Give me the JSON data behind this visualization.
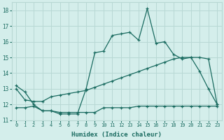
{
  "title": "",
  "xlabel": "Humidex (Indice chaleur)",
  "ylabel": "",
  "bg_color": "#d4eeeb",
  "grid_color": "#b8d8d4",
  "line_color": "#1a6b60",
  "xlim": [
    -0.5,
    23.5
  ],
  "ylim": [
    11,
    18.5
  ],
  "xticks": [
    0,
    1,
    2,
    3,
    4,
    5,
    6,
    7,
    8,
    9,
    10,
    11,
    12,
    13,
    14,
    15,
    16,
    17,
    18,
    19,
    20,
    21,
    22,
    23
  ],
  "yticks": [
    11,
    12,
    13,
    14,
    15,
    16,
    17,
    18
  ],
  "series1_x": [
    0,
    1,
    2,
    3,
    4,
    5,
    6,
    7,
    8,
    9,
    10,
    11,
    12,
    13,
    14,
    15,
    16,
    17,
    18,
    19,
    20,
    21,
    22,
    23
  ],
  "series1_y": [
    13.2,
    12.8,
    12.0,
    11.6,
    11.6,
    11.4,
    11.4,
    11.4,
    13.0,
    15.3,
    15.4,
    16.4,
    16.5,
    16.6,
    16.1,
    18.1,
    15.9,
    16.0,
    15.2,
    14.9,
    15.0,
    14.1,
    13.0,
    12.0
  ],
  "series2_x": [
    0,
    1,
    2,
    3,
    4,
    5,
    6,
    7,
    8,
    9,
    10,
    11,
    12,
    13,
    14,
    15,
    16,
    17,
    18,
    19,
    20,
    21,
    22,
    23
  ],
  "series2_y": [
    13.0,
    12.3,
    12.2,
    12.2,
    12.5,
    12.6,
    12.7,
    12.8,
    12.9,
    13.1,
    13.3,
    13.5,
    13.7,
    13.9,
    14.1,
    14.3,
    14.5,
    14.7,
    14.9,
    15.0,
    15.0,
    15.0,
    14.9,
    12.0
  ],
  "series3_x": [
    0,
    1,
    2,
    3,
    4,
    5,
    6,
    7,
    8,
    9,
    10,
    11,
    12,
    13,
    14,
    15,
    16,
    17,
    18,
    19,
    20,
    21,
    22,
    23
  ],
  "series3_y": [
    11.8,
    11.8,
    11.9,
    11.6,
    11.6,
    11.5,
    11.5,
    11.5,
    11.5,
    11.5,
    11.8,
    11.8,
    11.8,
    11.8,
    11.9,
    11.9,
    11.9,
    11.9,
    11.9,
    11.9,
    11.9,
    11.9,
    11.9,
    11.9
  ]
}
